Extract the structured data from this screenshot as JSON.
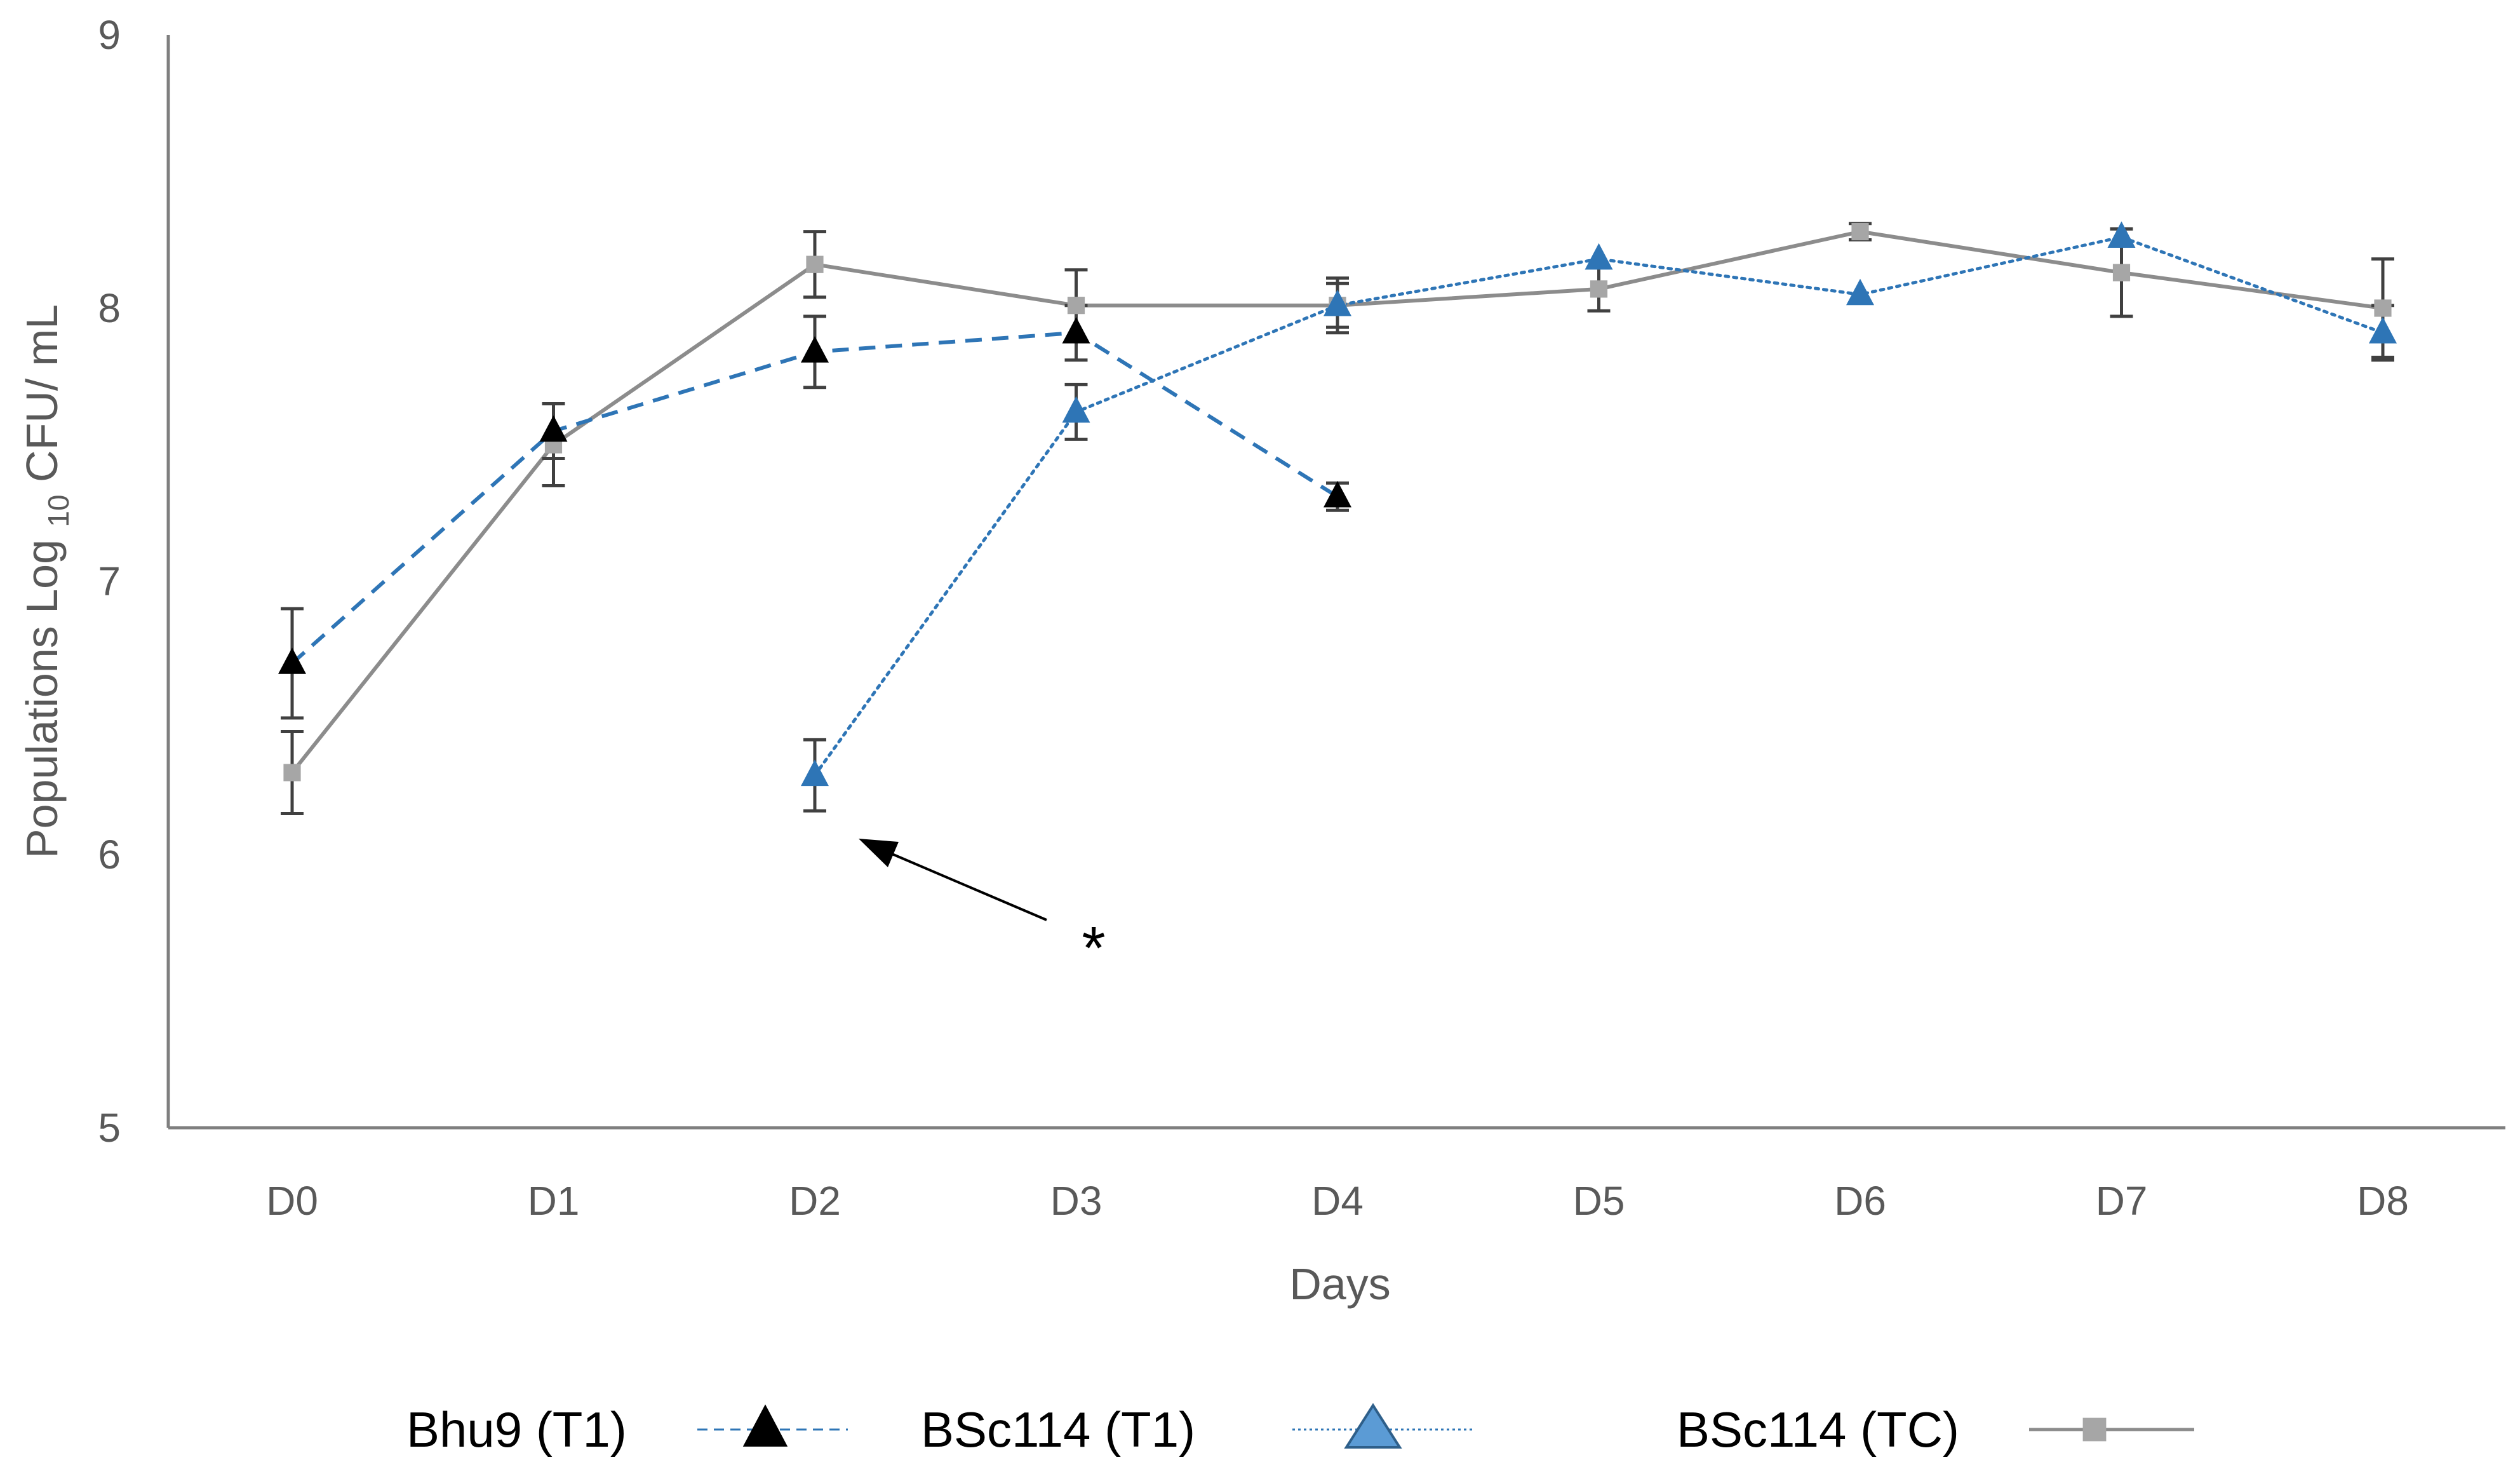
{
  "chart_data": {
    "type": "line",
    "title": "",
    "xlabel": "Days",
    "ylabel": {
      "prefix": "Populations Log ",
      "subscript": "10",
      "suffix": " CFU/ mL"
    },
    "ylim": [
      5,
      9
    ],
    "yticks": [
      5,
      6,
      7,
      8,
      9
    ],
    "grid": false,
    "legend_position": "bottom",
    "categories": [
      "D0",
      "D1",
      "D2",
      "D3",
      "D4",
      "D5",
      "D6",
      "D7",
      "D8"
    ],
    "series": [
      {
        "name": "Bhu9 (T1)",
        "marker": "triangle",
        "line_style": "dashed",
        "color": "#2e75b6",
        "marker_color": "#000000",
        "values": [
          6.7,
          7.55,
          7.84,
          7.91,
          7.31,
          null,
          null,
          null,
          null
        ],
        "errors": [
          0.2,
          0.1,
          0.13,
          0.1,
          0.05,
          null,
          null,
          null,
          null
        ]
      },
      {
        "name": "BSc114 (T1)",
        "marker": "triangle",
        "line_style": "dotted",
        "color": "#2e75b6",
        "marker_color": "#2e75b6",
        "values": [
          null,
          null,
          6.29,
          7.62,
          8.01,
          8.18,
          8.05,
          8.26,
          7.91
        ],
        "errors": [
          null,
          null,
          0.13,
          0.1,
          0.08,
          null,
          null,
          0.03,
          0.1
        ]
      },
      {
        "name": "BSc114 (TC)",
        "marker": "square",
        "line_style": "solid",
        "color": "#8c8c8c",
        "marker_color": "#a6a6a6",
        "values": [
          6.3,
          7.5,
          8.16,
          8.01,
          8.01,
          8.07,
          8.28,
          8.13,
          8.0
        ],
        "errors": [
          0.15,
          0.15,
          0.12,
          0.13,
          0.1,
          0.08,
          0.03,
          0.16,
          0.18
        ]
      }
    ],
    "annotations": [
      {
        "text": "*",
        "points_to_category": "D2",
        "points_to_value": 6.05
      }
    ],
    "colors": {
      "axis": "#7f7f7f",
      "text": "#595959",
      "legend_text": "#000000"
    }
  }
}
